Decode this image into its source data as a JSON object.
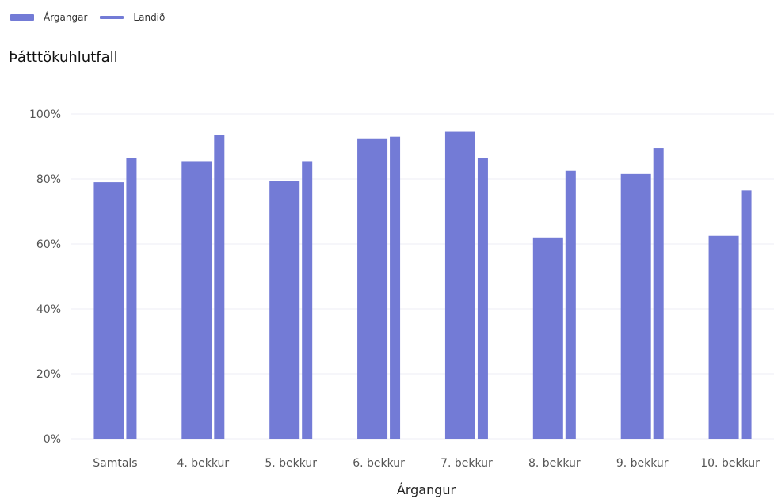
{
  "chart_data": {
    "type": "bar",
    "title": "Þátttökuhlutfall",
    "xlabel": "Árgangur",
    "ylabel": "",
    "categories": [
      "Samtals",
      "4. bekkur",
      "5. bekkur",
      "6. bekkur",
      "7. bekkur",
      "8. bekkur",
      "9. bekkur",
      "10. bekkur"
    ],
    "series": [
      {
        "name": "Árgangar",
        "values": [
          79,
          85.5,
          79.5,
          92.5,
          94.5,
          62,
          81.5,
          62.5
        ],
        "color": "#737bd6"
      },
      {
        "name": "Landið",
        "values": [
          86.5,
          93.5,
          85.5,
          93,
          86.5,
          82.5,
          89.5,
          76.5
        ],
        "color": "#737bd6"
      }
    ],
    "ylim": [
      0,
      100
    ],
    "yticks": [
      "0%",
      "20%",
      "40%",
      "60%",
      "80%",
      "100%"
    ],
    "ytick_values": [
      0,
      20,
      40,
      60,
      80,
      100
    ],
    "grid": true,
    "legend": "top-left"
  }
}
